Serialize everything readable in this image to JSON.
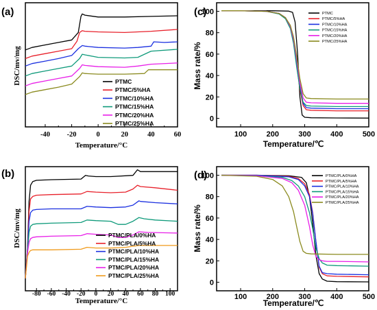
{
  "colors": {
    "black": "#000000",
    "red": "#e8202a",
    "blue": "#1a2fe0",
    "teal": "#0e9a7a",
    "magenta": "#e81ee8",
    "olive": "#8a8a1e"
  },
  "chart_data": [
    {
      "panel": "(a)",
      "type": "line",
      "xlabel": "Temperature/°C",
      "ylabel": "DSC/mv/mg",
      "xlim": [
        -55,
        60
      ],
      "xticks": [
        "-40",
        "-20",
        "0",
        "20",
        "40",
        "60"
      ],
      "xtick_values": [
        -40,
        -20,
        0,
        20,
        40,
        60
      ],
      "legend_position": "bottom-right",
      "series": [
        {
          "name": "PTMC",
          "color_key": "black",
          "x": [
            -55,
            -50,
            -40,
            -30,
            -20,
            -15,
            -13,
            -12,
            -10,
            0,
            20,
            40,
            60
          ],
          "y": [
            6.2,
            6.4,
            6.6,
            6.8,
            7.0,
            7.6,
            8.9,
            9.1,
            9.0,
            8.85,
            8.85,
            8.9,
            8.95
          ]
        },
        {
          "name": "PTMC/5%HA",
          "color_key": "red",
          "x": [
            -55,
            -50,
            -40,
            -30,
            -20,
            -16,
            -14,
            -12,
            -10,
            0,
            20,
            40,
            60
          ],
          "y": [
            5.5,
            5.7,
            5.9,
            6.1,
            6.3,
            6.9,
            7.6,
            7.75,
            7.7,
            7.65,
            7.6,
            7.7,
            7.85
          ]
        },
        {
          "name": "PTMC/10%HA",
          "color_key": "blue",
          "x": [
            -55,
            -50,
            -40,
            -30,
            -20,
            -15,
            -12,
            -10,
            0,
            20,
            30,
            40,
            42,
            50,
            60
          ],
          "y": [
            4.9,
            5.1,
            5.3,
            5.5,
            5.75,
            6.3,
            6.55,
            6.5,
            6.4,
            6.35,
            6.4,
            6.5,
            6.85,
            6.8,
            6.85
          ]
        },
        {
          "name": "PTMC/15%HA",
          "color_key": "teal",
          "x": [
            -55,
            -50,
            -40,
            -30,
            -20,
            -14,
            -12,
            -10,
            0,
            20,
            30,
            35,
            40,
            60
          ],
          "y": [
            4.1,
            4.3,
            4.5,
            4.7,
            4.9,
            5.5,
            5.85,
            5.8,
            5.6,
            5.55,
            5.6,
            5.85,
            6.1,
            6.25
          ]
        },
        {
          "name": "PTMC/20%HA",
          "color_key": "magenta",
          "x": [
            -55,
            -50,
            -40,
            -30,
            -20,
            -14,
            -12,
            -10,
            0,
            20,
            30,
            40,
            60
          ],
          "y": [
            3.3,
            3.5,
            3.7,
            3.9,
            4.1,
            4.7,
            5.0,
            4.95,
            4.85,
            4.8,
            4.9,
            5.05,
            5.15
          ]
        },
        {
          "name": "PTMC/25%HA",
          "color_key": "olive",
          "x": [
            -55,
            -50,
            -40,
            -30,
            -20,
            -14,
            -12,
            -10,
            0,
            20,
            35,
            38,
            42,
            60
          ],
          "y": [
            2.6,
            2.8,
            3.0,
            3.2,
            3.45,
            4.05,
            4.35,
            4.3,
            4.25,
            4.25,
            4.3,
            4.6,
            4.6,
            4.6
          ]
        }
      ],
      "ylim": [
        0,
        10
      ]
    },
    {
      "panel": "(b)",
      "type": "line",
      "xlabel": "Temperature/°C",
      "ylabel": "DSC/mv/mg",
      "xlim": [
        -95,
        110
      ],
      "xticks": [
        "-80",
        "-60",
        "-40",
        "-20",
        "0",
        "20",
        "40",
        "60",
        "80",
        "100"
      ],
      "xtick_values": [
        -80,
        -60,
        -40,
        -20,
        0,
        20,
        40,
        60,
        80,
        100
      ],
      "legend_position": "bottom-right",
      "series": [
        {
          "name": "PTMC/PLA/0%HA",
          "color_key": "black",
          "x": [
            -95,
            -92,
            -90,
            -88,
            -85,
            -80,
            -60,
            -20,
            -14,
            -10,
            0,
            20,
            50,
            56,
            60,
            80,
            110
          ],
          "y": [
            1.0,
            3.5,
            7.2,
            8.5,
            8.8,
            8.9,
            8.95,
            9.0,
            9.3,
            9.25,
            9.2,
            9.2,
            9.3,
            9.75,
            9.6,
            9.6,
            9.6
          ]
        },
        {
          "name": "PTMC/PLA/5%HA",
          "color_key": "red",
          "x": [
            -95,
            -92,
            -90,
            -88,
            -85,
            -80,
            -60,
            -20,
            -12,
            0,
            20,
            40,
            50,
            56,
            60,
            80,
            110
          ],
          "y": [
            1.0,
            3.4,
            6.4,
            7.4,
            7.6,
            7.7,
            7.75,
            7.8,
            8.0,
            7.95,
            7.9,
            7.95,
            8.2,
            8.5,
            8.4,
            8.3,
            8.1
          ]
        },
        {
          "name": "PTMC/PLA/10%HA",
          "color_key": "blue",
          "x": [
            -95,
            -92,
            -90,
            -88,
            -85,
            -80,
            -60,
            -20,
            -12,
            0,
            20,
            40,
            50,
            58,
            60,
            80,
            110
          ],
          "y": [
            1.0,
            3.3,
            5.6,
            6.3,
            6.5,
            6.55,
            6.6,
            6.6,
            6.8,
            6.75,
            6.7,
            6.75,
            6.9,
            7.25,
            7.2,
            7.1,
            7.0
          ]
        },
        {
          "name": "PTMC/PLA/15%HA",
          "color_key": "teal",
          "x": [
            -95,
            -92,
            -90,
            -88,
            -85,
            -80,
            -60,
            -20,
            -12,
            0,
            20,
            30,
            40,
            50,
            58,
            65,
            80,
            110
          ],
          "y": [
            1.0,
            3.2,
            4.7,
            5.2,
            5.35,
            5.4,
            5.45,
            5.5,
            5.7,
            5.65,
            5.6,
            5.35,
            5.35,
            5.6,
            5.9,
            5.8,
            5.7,
            5.6
          ]
        },
        {
          "name": "PTMC/PLA/20%HA",
          "color_key": "magenta",
          "x": [
            -95,
            -92,
            -90,
            -88,
            -85,
            -80,
            -60,
            -20,
            -12,
            0,
            20,
            30,
            40,
            50,
            58,
            70,
            110
          ],
          "y": [
            1.0,
            3.1,
            3.9,
            4.2,
            4.3,
            4.35,
            4.4,
            4.45,
            4.6,
            4.55,
            4.5,
            4.3,
            4.3,
            4.5,
            4.75,
            4.7,
            4.65
          ]
        },
        {
          "name": "PTMC/PLA/25%HA",
          "color_key": "orange",
          "x": [
            -95,
            -92,
            -90,
            -88,
            -85,
            -80,
            -60,
            -20,
            -12,
            0,
            20,
            40,
            58,
            70,
            110
          ],
          "y": [
            1.0,
            2.8,
            3.1,
            3.25,
            3.3,
            3.3,
            3.3,
            3.35,
            3.5,
            3.45,
            3.45,
            3.5,
            3.65,
            3.65,
            3.65
          ]
        }
      ],
      "ylim": [
        0,
        10
      ]
    },
    {
      "panel": "(c)",
      "type": "line",
      "xlabel": "Temperature/℃",
      "ylabel": "Mass rate/%",
      "xlim": [
        25,
        500
      ],
      "ylim": [
        -8,
        108
      ],
      "xticks": [
        "100",
        "200",
        "300",
        "400",
        "500"
      ],
      "xtick_values": [
        100,
        200,
        300,
        400,
        500
      ],
      "yticks": [
        "0",
        "20",
        "40",
        "60",
        "80",
        "100"
      ],
      "ytick_values": [
        0,
        20,
        40,
        60,
        80,
        100
      ],
      "legend_position": "top-right",
      "series": [
        {
          "name": "PTMC",
          "color_key": "black",
          "x": [
            40,
            100,
            200,
            250,
            262,
            270,
            278,
            285,
            292,
            300,
            320,
            400,
            500
          ],
          "y": [
            100.5,
            100.5,
            100.5,
            100.2,
            99,
            90,
            60,
            20,
            3,
            1,
            0.5,
            0.3,
            0.2
          ]
        },
        {
          "name": "PTMC/5%HA",
          "color_key": "red",
          "x": [
            40,
            100,
            180,
            220,
            240,
            255,
            265,
            275,
            285,
            295,
            305,
            320,
            400,
            500
          ],
          "y": [
            100.5,
            100.5,
            100,
            98,
            94,
            86,
            72,
            50,
            27,
            12,
            8,
            7.5,
            7,
            7
          ]
        },
        {
          "name": "PTMC/10%HA",
          "color_key": "blue",
          "x": [
            40,
            100,
            180,
            220,
            240,
            255,
            265,
            275,
            285,
            295,
            305,
            320,
            400,
            500
          ],
          "y": [
            100.5,
            100.5,
            100,
            98,
            94,
            86,
            73,
            52,
            30,
            14,
            10,
            9.5,
            9,
            9
          ]
        },
        {
          "name": "PTMC/15%HA",
          "color_key": "teal",
          "x": [
            40,
            100,
            180,
            220,
            240,
            255,
            265,
            275,
            285,
            295,
            305,
            320,
            400,
            500
          ],
          "y": [
            100.5,
            100.5,
            100,
            97.5,
            93,
            84,
            70,
            48,
            28,
            15,
            12,
            11.5,
            11,
            11
          ]
        },
        {
          "name": "PTMC/20%HA",
          "color_key": "magenta",
          "x": [
            40,
            100,
            180,
            220,
            240,
            255,
            265,
            275,
            285,
            295,
            305,
            320,
            400,
            500
          ],
          "y": [
            100.5,
            100.5,
            100,
            98,
            94,
            86,
            74,
            55,
            33,
            19,
            15,
            14.5,
            14,
            14
          ]
        },
        {
          "name": "PTMC/25%HA",
          "color_key": "olive",
          "x": [
            40,
            100,
            180,
            220,
            240,
            255,
            265,
            275,
            285,
            295,
            305,
            320,
            400,
            500
          ],
          "y": [
            100.5,
            100.5,
            100,
            98,
            94,
            87,
            76,
            58,
            37,
            23,
            19,
            18.5,
            18,
            18
          ]
        }
      ]
    },
    {
      "panel": "(d)",
      "type": "line",
      "xlabel": "Temperature/℃",
      "ylabel": "Mass rate/%",
      "xlim": [
        25,
        500
      ],
      "ylim": [
        -8,
        108
      ],
      "xticks": [
        "100",
        "200",
        "300",
        "400",
        "500"
      ],
      "xtick_values": [
        100,
        200,
        300,
        400,
        500
      ],
      "yticks": [
        "0",
        "20",
        "40",
        "60",
        "80",
        "100"
      ],
      "ytick_values": [
        0,
        20,
        40,
        60,
        80,
        100
      ],
      "legend_position": "top-right",
      "series": [
        {
          "name": "PTMC/PLA/0%HA",
          "color_key": "black",
          "x": [
            40,
            150,
            250,
            290,
            305,
            315,
            325,
            335,
            345,
            355,
            370,
            400,
            500
          ],
          "y": [
            100,
            100,
            99.5,
            98,
            93,
            80,
            55,
            25,
            8,
            3,
            1,
            0.5,
            0.3
          ]
        },
        {
          "name": "PTMC/PLA/5%HA",
          "color_key": "red",
          "x": [
            40,
            150,
            250,
            280,
            300,
            315,
            325,
            335,
            345,
            355,
            370,
            400,
            500
          ],
          "y": [
            100,
            100,
            99,
            97,
            92,
            82,
            65,
            38,
            14,
            8,
            6,
            5.5,
            5
          ]
        },
        {
          "name": "PTMC/PLA/10%HA",
          "color_key": "blue",
          "x": [
            40,
            150,
            250,
            280,
            300,
            315,
            325,
            335,
            345,
            355,
            370,
            400,
            500
          ],
          "y": [
            100,
            100,
            98.5,
            96,
            90,
            80,
            64,
            38,
            15,
            9,
            8,
            7.5,
            7
          ]
        },
        {
          "name": "PTMC/PLA/15%HA",
          "color_key": "teal",
          "x": [
            40,
            150,
            230,
            260,
            280,
            300,
            315,
            325,
            335,
            345,
            355,
            370,
            400,
            500
          ],
          "y": [
            100,
            99.5,
            98,
            95,
            90,
            80,
            65,
            50,
            32,
            22,
            18,
            16,
            15.5,
            15
          ]
        },
        {
          "name": "PTMC/PLA/20%HA",
          "color_key": "magenta",
          "x": [
            40,
            150,
            230,
            260,
            280,
            300,
            315,
            325,
            335,
            345,
            355,
            370,
            400,
            500
          ],
          "y": [
            100,
            99.5,
            97,
            93,
            86,
            72,
            52,
            35,
            24,
            21,
            20,
            19.5,
            19.5,
            19
          ]
        },
        {
          "name": "PTMC/PLA/25%HA",
          "color_key": "olive",
          "x": [
            40,
            150,
            200,
            230,
            250,
            265,
            275,
            285,
            295,
            305,
            320,
            400,
            500
          ],
          "y": [
            100,
            99,
            96,
            90,
            80,
            66,
            52,
            38,
            29,
            27,
            26.5,
            26,
            26
          ]
        }
      ]
    }
  ],
  "panel_colors_extra": {
    "orange": "#f09a1a"
  }
}
